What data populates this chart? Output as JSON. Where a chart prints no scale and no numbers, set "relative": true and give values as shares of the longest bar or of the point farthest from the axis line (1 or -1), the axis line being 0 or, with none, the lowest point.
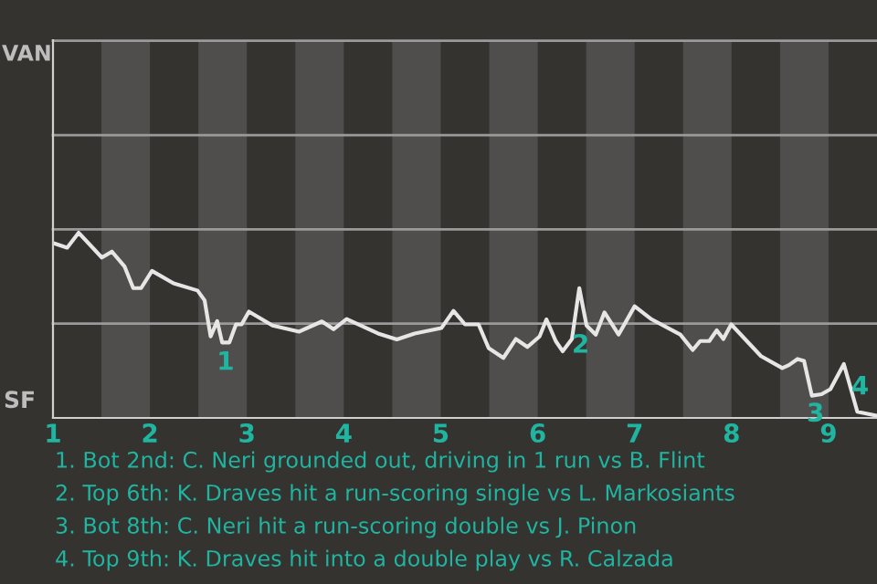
{
  "chart_data": {
    "type": "line",
    "relative": true,
    "x": [
      1.021,
      1.146,
      1.265,
      1.504,
      1.608,
      1.739,
      1.828,
      1.909,
      2.021,
      2.244,
      2.491,
      2.564,
      2.626,
      2.694,
      2.745,
      2.819,
      2.888,
      2.946,
      3.021,
      3.265,
      3.54,
      3.774,
      3.894,
      4.029,
      4.353,
      4.547,
      4.731,
      5.006,
      5.131,
      5.25,
      5.39,
      5.494,
      5.646,
      5.774,
      5.894,
      6.019,
      6.09,
      6.186,
      6.257,
      6.353,
      6.429,
      6.504,
      6.599,
      6.689,
      6.834,
      7.0,
      7.176,
      7.471,
      7.599,
      7.676,
      7.77,
      7.847,
      7.915,
      7.996,
      8.303,
      8.523,
      8.591,
      8.68,
      8.747,
      8.828,
      8.928,
      9.019,
      9.158,
      9.297,
      9.5
    ],
    "series": [
      {
        "color": "#e6e6e6",
        "values": [
          0.941,
          0.919,
          1,
          0.866,
          0.898,
          0.817,
          0.701,
          0.701,
          0.794,
          0.727,
          0.688,
          0.635,
          0.44,
          0.523,
          0.407,
          0.407,
          0.505,
          0.505,
          0.574,
          0.499,
          0.466,
          0.521,
          0.479,
          0.534,
          0.456,
          0.424,
          0.456,
          0.485,
          0.578,
          0.505,
          0.505,
          0.377,
          0.324,
          0.426,
          0.383,
          0.44,
          0.532,
          0.415,
          0.36,
          0.426,
          0.701,
          0.499,
          0.45,
          0.57,
          0.45,
          0.603,
          0.532,
          0.45,
          0.367,
          0.415,
          0.415,
          0.473,
          0.426,
          0.505,
          0.334,
          0.269,
          0.285,
          0.318,
          0.308,
          0.12,
          0.128,
          0.155,
          0.291,
          0.033,
          0.012
        ]
      }
    ],
    "xlim": [
      1,
      9.5
    ],
    "xticks": [
      1,
      2,
      3,
      4,
      5,
      6,
      7,
      8,
      9
    ],
    "tick_labels": "x",
    "ref_lines": [
      {
        "axis": "y",
        "value": 0.509,
        "color": "#9a9a9a"
      },
      {
        "axis": "y",
        "value": 1.018,
        "color": "#9a9a9a"
      },
      {
        "axis": "y",
        "value": 1.527,
        "color": "#9a9a9a"
      },
      {
        "axis": "y",
        "value": 2.037,
        "color": "#9a9a9a"
      }
    ],
    "bands": [
      {
        "axis": "x",
        "from": 1.5,
        "to": 2,
        "color": "#4f4e4c"
      },
      {
        "axis": "x",
        "from": 2.5,
        "to": 3,
        "color": "#4f4e4c"
      },
      {
        "axis": "x",
        "from": 3.5,
        "to": 4,
        "color": "#4f4e4c"
      },
      {
        "axis": "x",
        "from": 4.5,
        "to": 5,
        "color": "#4f4e4c"
      },
      {
        "axis": "x",
        "from": 5.5,
        "to": 6,
        "color": "#4f4e4c"
      },
      {
        "axis": "x",
        "from": 6.5,
        "to": 7,
        "color": "#4f4e4c"
      },
      {
        "axis": "x",
        "from": 7.5,
        "to": 8,
        "color": "#4f4e4c"
      },
      {
        "axis": "x",
        "from": 8.5,
        "to": 9,
        "color": "#4f4e4c"
      }
    ],
    "annotations": [
      "VAN",
      "SF",
      {
        "text": "1",
        "x": 2.78,
        "y": 0.407
      },
      {
        "text": "2",
        "x": 6.443,
        "y": 0.499
      },
      {
        "text": "3",
        "x": 8.865,
        "y": 0.128
      },
      {
        "text": "4",
        "x": 9.417,
        "y": 0.041
      },
      "1. Bot 2nd: C. Neri grounded out, driving in 1 run vs B. Flint",
      "2. Top 6th: K. Draves hit a run-scoring single vs L. Markosiants",
      "3. Bot 8th: C. Neri hit a run-scoring double vs J. Pinon",
      "4. Top 9th: K. Draves hit into a double play vs R. Calzada"
    ]
  }
}
